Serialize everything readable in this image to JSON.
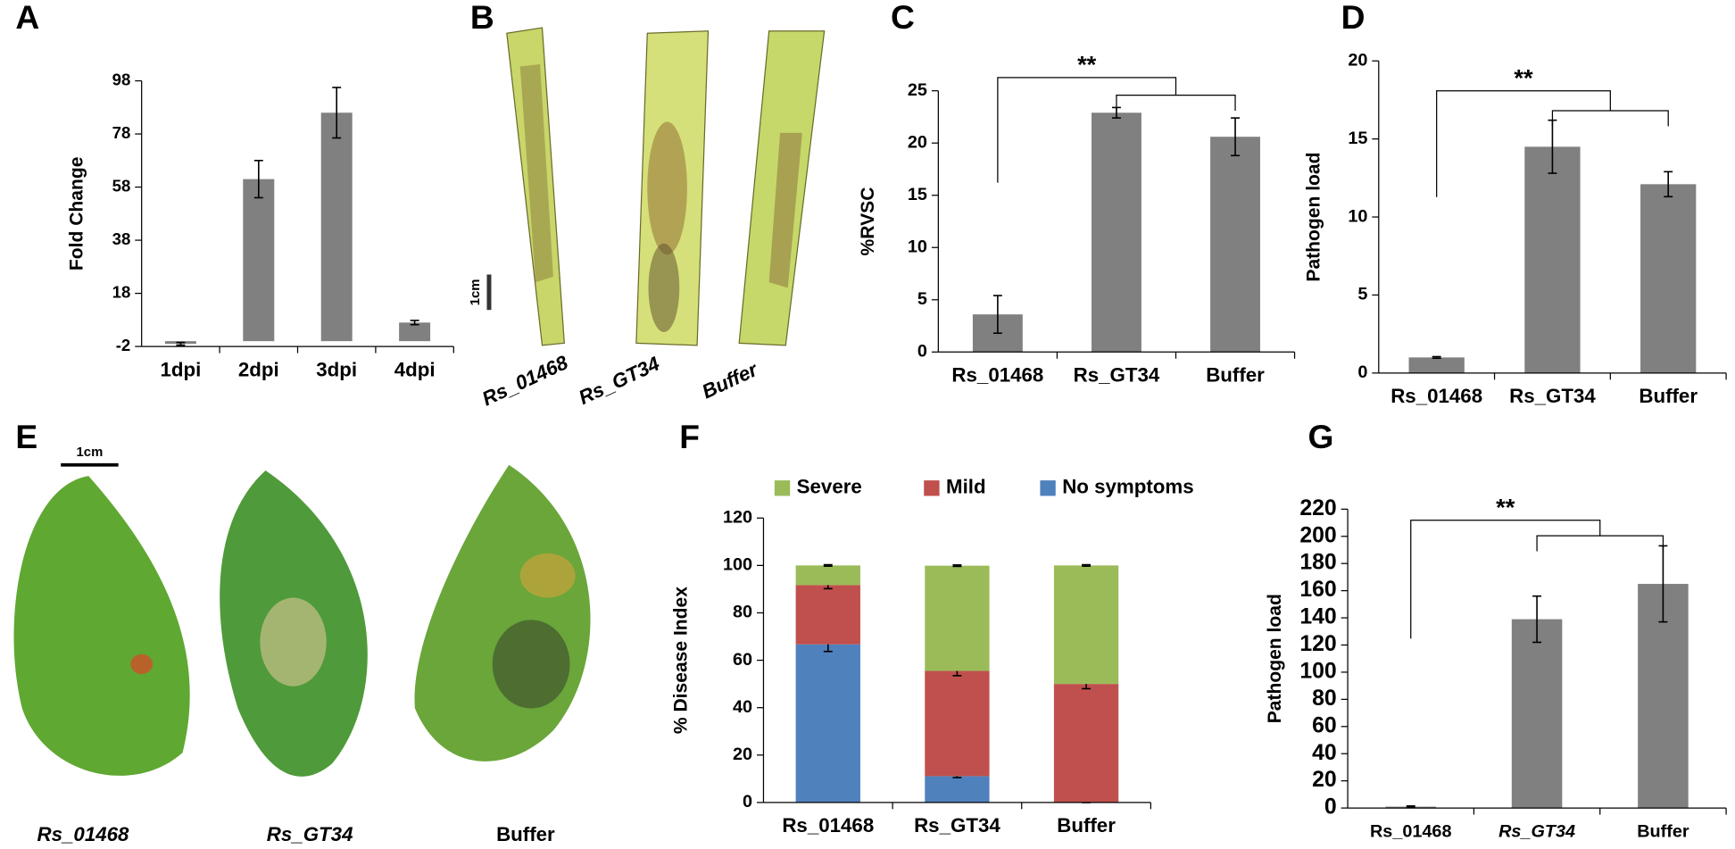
{
  "chart_data": [
    {
      "panel": "A",
      "type": "bar",
      "y_label": "Fold Change",
      "categories": [
        "1dpi",
        "2dpi",
        "3dpi",
        "4dpi"
      ],
      "values": [
        -1,
        61,
        86,
        7
      ],
      "errors": [
        0.5,
        7,
        9.5,
        0.8
      ],
      "color": "#808080",
      "ylim": [
        -2,
        98
      ],
      "yticks": [
        -2,
        18,
        38,
        58,
        78,
        98
      ]
    },
    {
      "panel": "C",
      "type": "bar",
      "y_label": "%RVSC",
      "annotation": "**",
      "categories": [
        "Rs_01468",
        "Rs_GT34",
        "Buffer"
      ],
      "values": [
        3.6,
        22.9,
        20.6
      ],
      "errors": [
        1.8,
        0.5,
        1.8
      ],
      "color": "#808080",
      "ylim": [
        0,
        25
      ],
      "yticks": [
        0,
        5,
        10,
        15,
        20,
        25
      ]
    },
    {
      "panel": "D",
      "type": "bar",
      "y_label": "Pathogen load",
      "annotation": "**",
      "categories": [
        "Rs_01468",
        "Rs_GT34",
        "Buffer"
      ],
      "values": [
        1,
        14.5,
        12.1
      ],
      "errors": [
        0.05,
        1.7,
        0.8
      ],
      "color": "#808080",
      "ylim": [
        0,
        20
      ],
      "yticks": [
        0,
        5,
        10,
        15,
        20
      ]
    },
    {
      "panel": "F",
      "type": "stacked_bar",
      "y_label": "% Disease Index",
      "legend": "top",
      "categories": [
        "Rs_01468",
        "Rs_GT34",
        "Buffer"
      ],
      "series": [
        {
          "name": "Severe",
          "color": "#9bbb59",
          "values": [
            8.3,
            44.4,
            50
          ],
          "errors": [
            0.3,
            0.3,
            0.3
          ]
        },
        {
          "name": "Mild",
          "color": "#c0504d",
          "values": [
            25,
            44.4,
            50
          ],
          "errors": [
            1.5,
            2,
            2
          ]
        },
        {
          "name": "No symptoms",
          "color": "#4f81bd",
          "values": [
            66.7,
            11.1,
            0
          ],
          "errors": [
            3,
            0.6,
            0
          ]
        }
      ],
      "ylim": [
        0,
        120
      ],
      "yticks": [
        0,
        20,
        40,
        60,
        80,
        100,
        120
      ]
    },
    {
      "panel": "G",
      "type": "bar",
      "y_label": "Pathogen load",
      "annotation": "**",
      "categories": [
        "Rs_01468",
        "Rs_GT34",
        "Buffer"
      ],
      "values": [
        1,
        139,
        165
      ],
      "errors": [
        0.5,
        17,
        28
      ],
      "color": "#808080",
      "ylim": [
        0,
        220
      ],
      "yticks": [
        0,
        20,
        40,
        60,
        80,
        100,
        120,
        140,
        160,
        180,
        200,
        220
      ]
    }
  ],
  "photo_panels": [
    {
      "panel": "B",
      "scale_label": "1cm",
      "labels": [
        "Rs_01468",
        "Rs_GT34",
        "Buffer"
      ]
    },
    {
      "panel": "E",
      "scale_label": "1cm",
      "labels": [
        "Rs_01468",
        "Rs_GT34",
        "Buffer"
      ]
    }
  ]
}
